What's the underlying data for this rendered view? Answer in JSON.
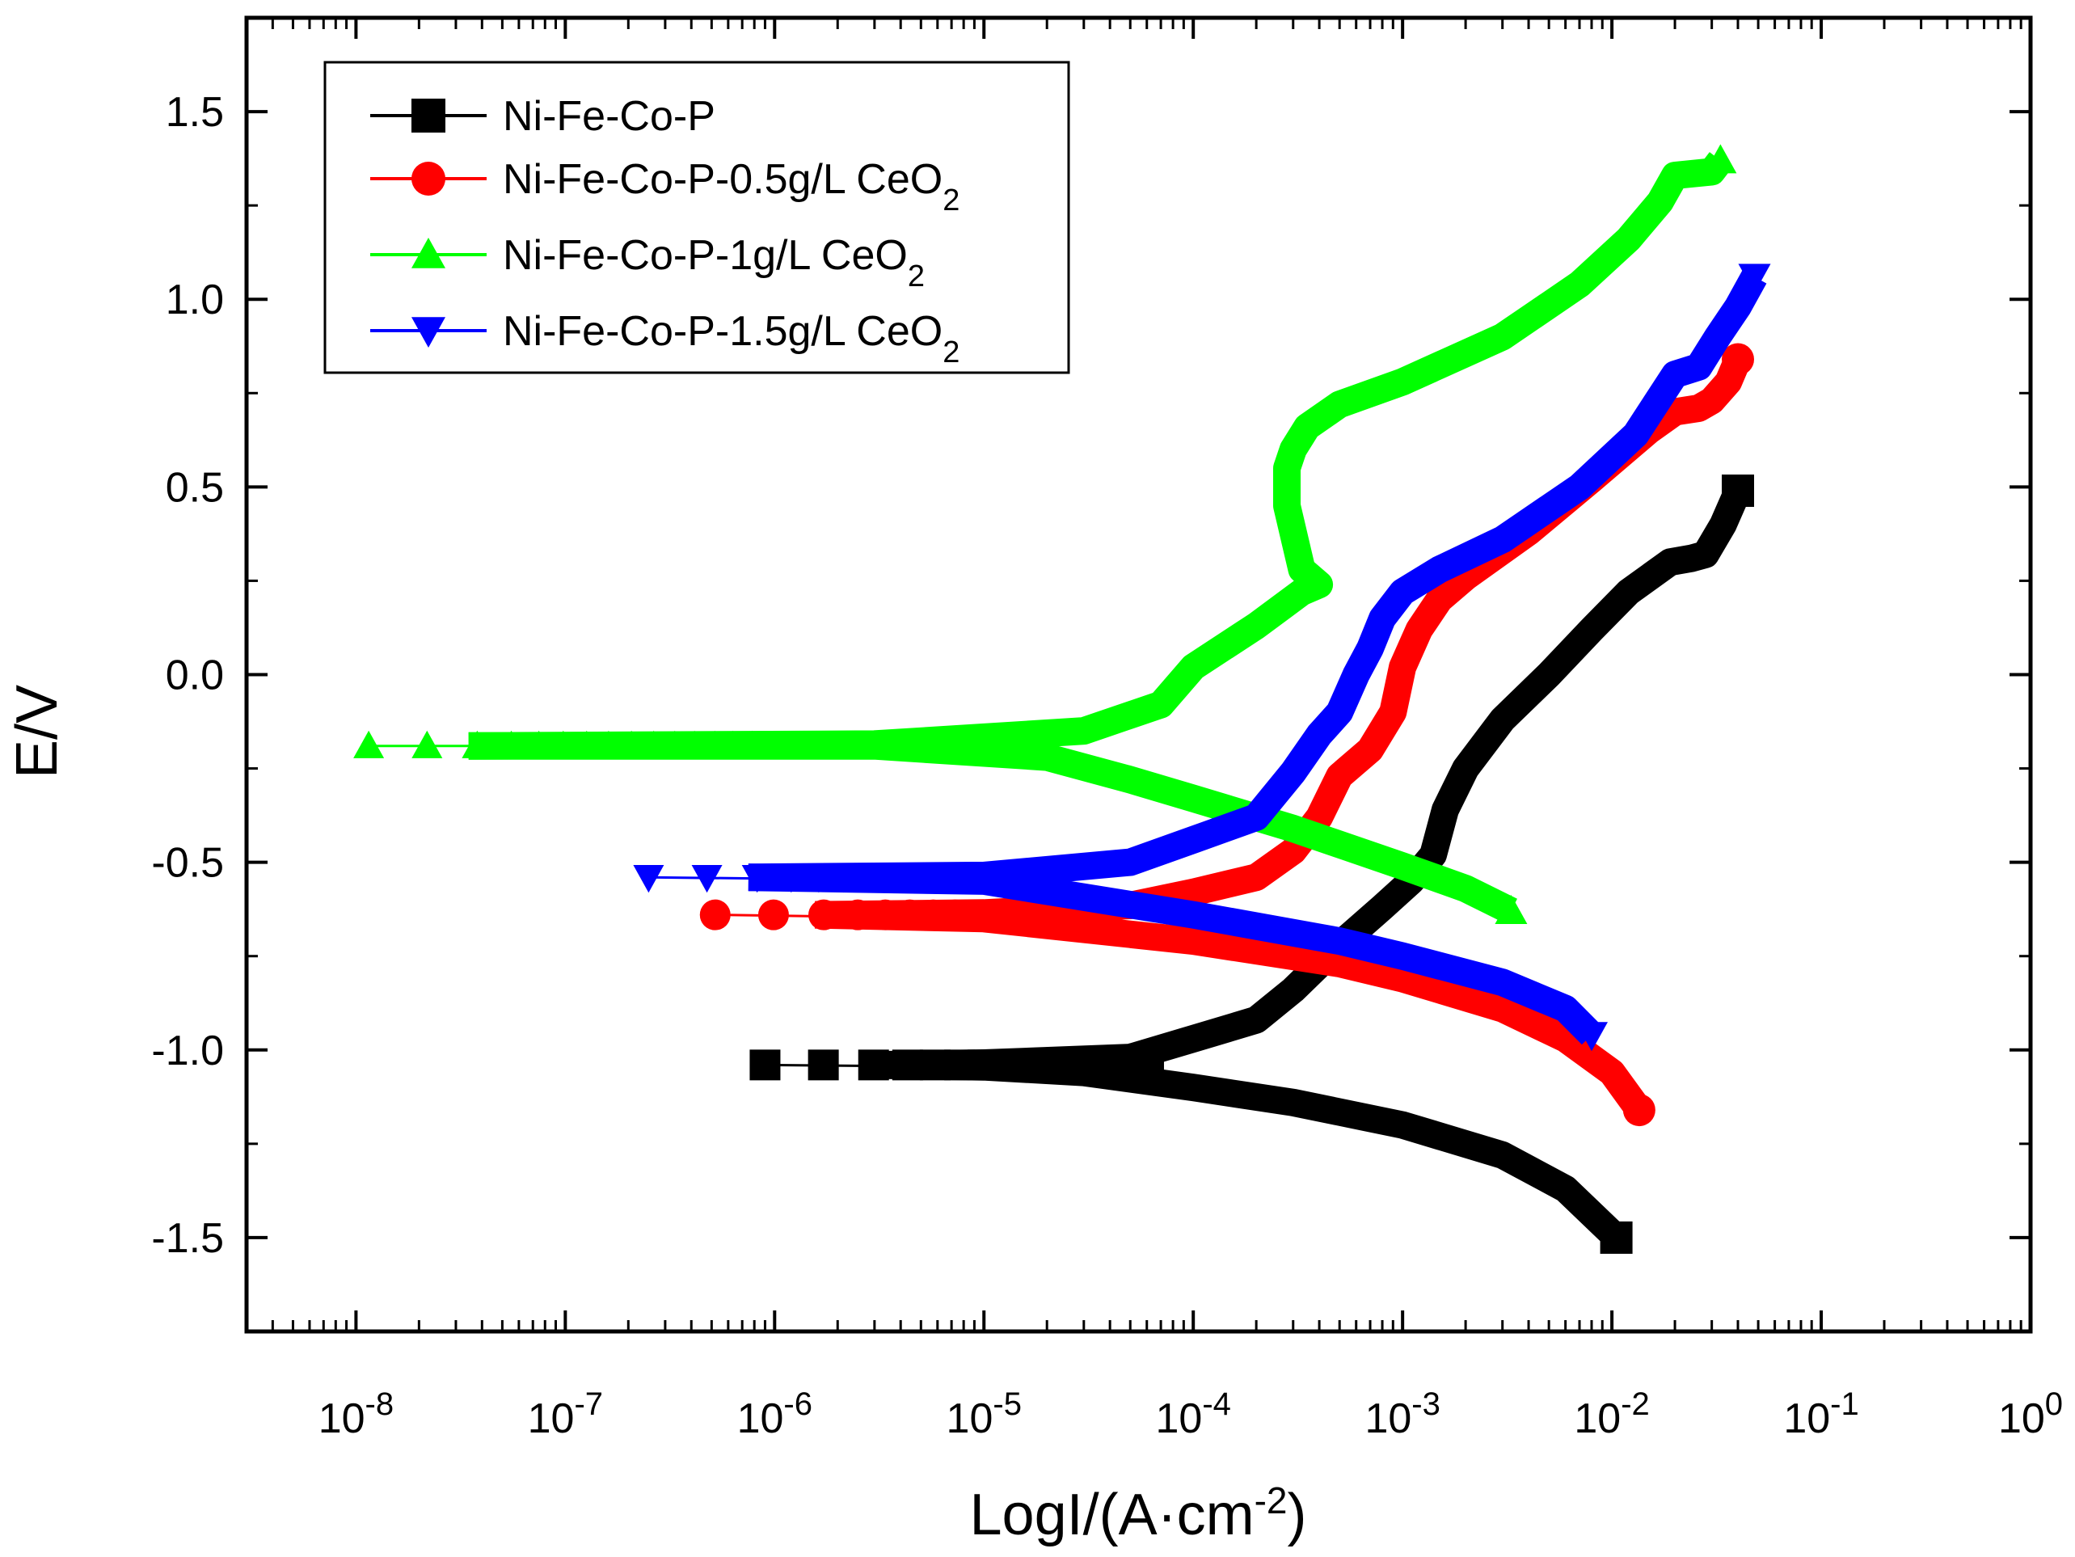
{
  "chart_data": {
    "type": "line",
    "title": "",
    "xlabel": "LogI/(A·cm",
    "xlabel_sup": "-2",
    "xlabel_close": ")",
    "ylabel": "E/V",
    "x_scale": "log",
    "xlim": [
      3e-09,
      1
    ],
    "ylim": [
      -1.75,
      1.75
    ],
    "grid": false,
    "legend_position": "top-left",
    "x_ticks": [
      {
        "base": "10",
        "exp": "-8",
        "value": 1e-08
      },
      {
        "base": "10",
        "exp": "-7",
        "value": 1e-07
      },
      {
        "base": "10",
        "exp": "-6",
        "value": 1e-06
      },
      {
        "base": "10",
        "exp": "-5",
        "value": 1e-05
      },
      {
        "base": "10",
        "exp": "-4",
        "value": 0.0001
      },
      {
        "base": "10",
        "exp": "-3",
        "value": 0.001
      },
      {
        "base": "10",
        "exp": "-2",
        "value": 0.01
      },
      {
        "base": "10",
        "exp": "-1",
        "value": 0.1
      },
      {
        "base": "10",
        "exp": "0",
        "value": 1
      }
    ],
    "y_ticks": [
      {
        "label": "1.5",
        "value": 1.5
      },
      {
        "label": "1.0",
        "value": 1.0
      },
      {
        "label": "0.5",
        "value": 0.5
      },
      {
        "label": "0.0",
        "value": 0.0
      },
      {
        "label": "-0.5",
        "value": -0.5
      },
      {
        "label": "-1.0",
        "value": -1.0
      },
      {
        "label": "-1.5",
        "value": -1.5
      }
    ],
    "series": [
      {
        "name": "Ni-Fe-Co-P",
        "legend_main": "Ni-Fe-Co-P",
        "legend_sub": "",
        "color": "#000000",
        "marker": "square",
        "ecorr": -1.04,
        "icorr": 9e-07,
        "cathodic": [
          [
            9e-07,
            -1.04
          ],
          [
            1e-05,
            -1.045
          ],
          [
            3e-05,
            -1.06
          ],
          [
            0.0001,
            -1.1
          ],
          [
            0.0003,
            -1.14
          ],
          [
            0.001,
            -1.2
          ],
          [
            0.003,
            -1.28
          ],
          [
            0.006,
            -1.37
          ],
          [
            0.0105,
            -1.5
          ]
        ],
        "anodic": [
          [
            9e-07,
            -1.04
          ],
          [
            1e-05,
            -1.035
          ],
          [
            5e-05,
            -1.02
          ],
          [
            0.0001,
            -0.97
          ],
          [
            0.0002,
            -0.92
          ],
          [
            0.0003,
            -0.84
          ],
          [
            0.0005,
            -0.72
          ],
          [
            0.0008,
            -0.62
          ],
          [
            0.0011,
            -0.55
          ],
          [
            0.0014,
            -0.48
          ],
          [
            0.0016,
            -0.36
          ],
          [
            0.002,
            -0.25
          ],
          [
            0.003,
            -0.12
          ],
          [
            0.005,
            0.0
          ],
          [
            0.008,
            0.12
          ],
          [
            0.012,
            0.22
          ],
          [
            0.019,
            0.3
          ],
          [
            0.024,
            0.31
          ],
          [
            0.028,
            0.32
          ],
          [
            0.034,
            0.4
          ],
          [
            0.04,
            0.49
          ]
        ]
      },
      {
        "name": "Ni-Fe-Co-P-0.5g/L CeO2",
        "legend_main": "Ni-Fe-Co-P-0.5g/L CeO",
        "legend_sub": "2",
        "color": "#ff0000",
        "marker": "circle",
        "ecorr": -0.64,
        "icorr": 5.2e-07,
        "cathodic": [
          [
            5.2e-07,
            -0.64
          ],
          [
            1e-05,
            -0.65
          ],
          [
            0.0001,
            -0.71
          ],
          [
            0.0005,
            -0.77
          ],
          [
            0.001,
            -0.81
          ],
          [
            0.003,
            -0.89
          ],
          [
            0.006,
            -0.97
          ],
          [
            0.01,
            -1.06
          ],
          [
            0.0135,
            -1.16
          ]
        ],
        "anodic": [
          [
            5.2e-07,
            -0.64
          ],
          [
            1e-05,
            -0.635
          ],
          [
            5e-05,
            -0.615
          ],
          [
            0.0001,
            -0.58
          ],
          [
            0.0002,
            -0.54
          ],
          [
            0.0003,
            -0.47
          ],
          [
            0.0004,
            -0.38
          ],
          [
            0.0005,
            -0.27
          ],
          [
            0.0007,
            -0.2
          ],
          [
            0.0009,
            -0.1
          ],
          [
            0.001,
            0.02
          ],
          [
            0.0012,
            0.12
          ],
          [
            0.0015,
            0.2
          ],
          [
            0.002,
            0.26
          ],
          [
            0.004,
            0.38
          ],
          [
            0.008,
            0.52
          ],
          [
            0.015,
            0.65
          ],
          [
            0.02,
            0.7
          ],
          [
            0.026,
            0.71
          ],
          [
            0.03,
            0.73
          ],
          [
            0.036,
            0.78
          ],
          [
            0.04,
            0.84
          ]
        ]
      },
      {
        "name": "Ni-Fe-Co-P-1g/L CeO2",
        "legend_main": "Ni-Fe-Co-P-1g/L CeO",
        "legend_sub": "2",
        "color": "#00ff00",
        "marker": "triangle-up",
        "ecorr": -0.19,
        "icorr": 1.15e-08,
        "cathodic": [
          [
            1.15e-08,
            -0.19
          ],
          [
            3e-06,
            -0.19
          ],
          [
            2e-05,
            -0.22
          ],
          [
            5e-05,
            -0.28
          ],
          [
            0.0001,
            -0.33
          ],
          [
            0.0003,
            -0.41
          ],
          [
            0.001,
            -0.51
          ],
          [
            0.002,
            -0.57
          ],
          [
            0.0033,
            -0.63
          ]
        ],
        "anodic": [
          [
            1.15e-08,
            -0.19
          ],
          [
            3e-06,
            -0.185
          ],
          [
            3e-05,
            -0.15
          ],
          [
            7e-05,
            -0.08
          ],
          [
            0.0001,
            0.02
          ],
          [
            0.0002,
            0.13
          ],
          [
            0.00033,
            0.22
          ],
          [
            0.0004,
            0.24
          ],
          [
            0.00033,
            0.28
          ],
          [
            0.00028,
            0.45
          ],
          [
            0.00028,
            0.55
          ],
          [
            0.0003,
            0.6
          ],
          [
            0.00035,
            0.66
          ],
          [
            0.0005,
            0.72
          ],
          [
            0.001,
            0.78
          ],
          [
            0.003,
            0.9
          ],
          [
            0.007,
            1.04
          ],
          [
            0.012,
            1.16
          ],
          [
            0.017,
            1.26
          ],
          [
            0.02,
            1.33
          ],
          [
            0.03,
            1.34
          ],
          [
            0.033,
            1.37
          ]
        ]
      },
      {
        "name": "Ni-Fe-Co-P-1.5g/L CeO2",
        "legend_main": "Ni-Fe-Co-P-1.5g/L CeO",
        "legend_sub": "2",
        "color": "#0000ff",
        "marker": "triangle-down",
        "ecorr": -0.54,
        "icorr": 2.5e-07,
        "cathodic": [
          [
            2.5e-07,
            -0.54
          ],
          [
            1e-05,
            -0.55
          ],
          [
            0.0001,
            -0.64
          ],
          [
            0.0005,
            -0.71
          ],
          [
            0.001,
            -0.75
          ],
          [
            0.003,
            -0.82
          ],
          [
            0.006,
            -0.89
          ],
          [
            0.008,
            -0.96
          ]
        ],
        "anodic": [
          [
            2.5e-07,
            -0.54
          ],
          [
            1e-05,
            -0.535
          ],
          [
            5e-05,
            -0.5
          ],
          [
            0.0001,
            -0.44
          ],
          [
            0.0002,
            -0.38
          ],
          [
            0.0003,
            -0.26
          ],
          [
            0.0004,
            -0.16
          ],
          [
            0.0005,
            -0.1
          ],
          [
            0.0006,
            0.0
          ],
          [
            0.0007,
            0.07
          ],
          [
            0.0008,
            0.15
          ],
          [
            0.001,
            0.22
          ],
          [
            0.0015,
            0.28
          ],
          [
            0.003,
            0.36
          ],
          [
            0.007,
            0.5
          ],
          [
            0.013,
            0.64
          ],
          [
            0.02,
            0.8
          ],
          [
            0.026,
            0.82
          ],
          [
            0.032,
            0.9
          ],
          [
            0.04,
            0.98
          ],
          [
            0.048,
            1.06
          ]
        ]
      }
    ]
  }
}
